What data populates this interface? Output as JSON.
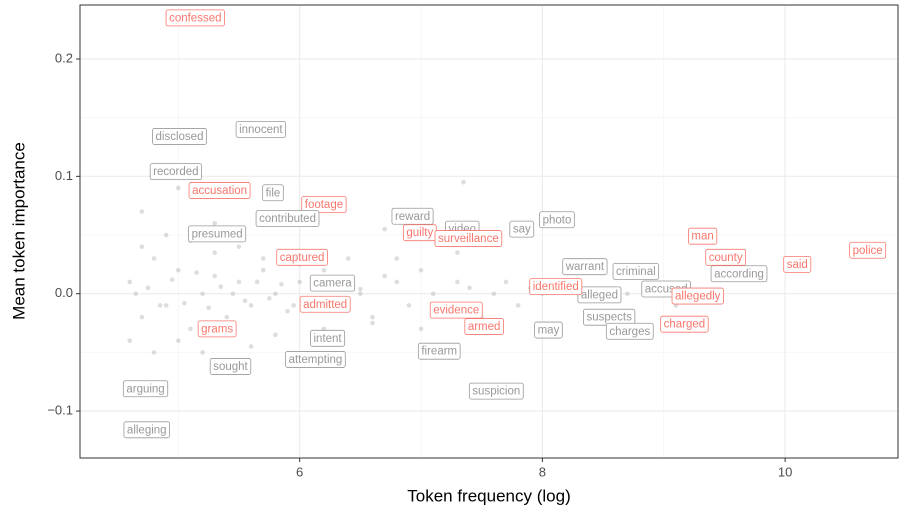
{
  "chart_data": {
    "type": "scatter",
    "x_label": "Token frequency (log)",
    "y_label": "Mean token importance",
    "xlim": [
      4.19,
      10.93
    ],
    "ylim": [
      -0.14,
      0.246
    ],
    "xticks": [
      6,
      8,
      10
    ],
    "yticks": [
      {
        "value": -0.1,
        "label": "−0.1"
      },
      {
        "value": 0,
        "label": "0.0"
      },
      0.1,
      0.2
    ],
    "x_minor": [
      5,
      7,
      9
    ],
    "y_minor": [
      -0.05,
      0.05,
      0.15
    ],
    "grid": true,
    "point_color": "#b3b3b3",
    "points": {
      "x": [
        4.6,
        4.7,
        4.8,
        4.9,
        5.0,
        5.1,
        5.2,
        5.3,
        5.4,
        5.5,
        5.6,
        5.7,
        5.8,
        5.9,
        6.0,
        6.1,
        6.2,
        6.3,
        6.4,
        6.5,
        6.6,
        6.7,
        6.8,
        6.9,
        7.0,
        7.1,
        7.2,
        7.3,
        7.4,
        7.5,
        7.6,
        7.7,
        7.8,
        7.9,
        8.0,
        4.6,
        4.7,
        4.8,
        4.9,
        5.0,
        5.1,
        5.2,
        5.3,
        5.4,
        5.5,
        5.6,
        5.7,
        5.8,
        5.9,
        6.0,
        6.2,
        6.4,
        6.6,
        6.8,
        7.0,
        7.3,
        7.6,
        4.65,
        4.75,
        4.85,
        4.95,
        5.05,
        5.15,
        5.25,
        5.35,
        5.45,
        5.55,
        5.65,
        5.75,
        5.85,
        5.95,
        6.1,
        6.3,
        6.5,
        4.8,
        4.7,
        5.0,
        5.3,
        6.7,
        7.35,
        8.3,
        8.7,
        9.1
      ],
      "y": [
        0.01,
        -0.02,
        0.03,
        -0.01,
        0.02,
        -0.03,
        0.0,
        0.015,
        -0.02,
        0.01,
        -0.01,
        0.02,
        0.0,
        -0.015,
        0.01,
        -0.005,
        0.02,
        -0.01,
        0.005,
        0.0,
        -0.02,
        0.015,
        0.01,
        -0.01,
        0.02,
        0.0,
        -0.015,
        0.01,
        0.005,
        -0.02,
        0.0,
        0.01,
        -0.01,
        0.005,
        0.0,
        -0.04,
        0.04,
        -0.05,
        0.05,
        -0.04,
        0.045,
        -0.05,
        0.035,
        -0.03,
        0.04,
        -0.045,
        0.03,
        -0.035,
        0.03,
        0.025,
        -0.03,
        0.03,
        -0.025,
        0.03,
        -0.03,
        0.035,
        -0.025,
        0.0,
        0.005,
        -0.01,
        0.012,
        -0.008,
        0.018,
        -0.012,
        0.006,
        0.0,
        -0.006,
        0.01,
        -0.004,
        0.008,
        -0.01,
        0.012,
        -0.008,
        0.004,
        0.135,
        0.07,
        0.09,
        0.06,
        0.055,
        0.095,
        0.01,
        0.0,
        -0.01
      ]
    },
    "labels": [
      {
        "text": "confessed",
        "x": 5.14,
        "y": 0.235,
        "color": "#f8766d"
      },
      {
        "text": "disclosed",
        "x": 5.01,
        "y": 0.134,
        "color": "#999999"
      },
      {
        "text": "innocent",
        "x": 5.68,
        "y": 0.14,
        "color": "#999999"
      },
      {
        "text": "recorded",
        "x": 4.98,
        "y": 0.104,
        "color": "#999999"
      },
      {
        "text": "accusation",
        "x": 5.34,
        "y": 0.088,
        "color": "#f8766d"
      },
      {
        "text": "file",
        "x": 5.78,
        "y": 0.086,
        "color": "#999999"
      },
      {
        "text": "footage",
        "x": 6.2,
        "y": 0.076,
        "color": "#f8766d"
      },
      {
        "text": "contributed",
        "x": 5.9,
        "y": 0.064,
        "color": "#999999"
      },
      {
        "text": "presumed",
        "x": 5.32,
        "y": 0.051,
        "color": "#999999"
      },
      {
        "text": "reward",
        "x": 6.93,
        "y": 0.066,
        "color": "#999999"
      },
      {
        "text": "guilty",
        "x": 6.99,
        "y": 0.052,
        "color": "#f8766d"
      },
      {
        "text": "video",
        "x": 7.34,
        "y": 0.055,
        "color": "#999999"
      },
      {
        "text": "surveillance",
        "x": 7.39,
        "y": 0.047,
        "color": "#f8766d"
      },
      {
        "text": "say",
        "x": 7.83,
        "y": 0.055,
        "color": "#999999"
      },
      {
        "text": "photo",
        "x": 8.12,
        "y": 0.063,
        "color": "#999999"
      },
      {
        "text": "captured",
        "x": 6.02,
        "y": 0.031,
        "color": "#f8766d"
      },
      {
        "text": "camera",
        "x": 6.27,
        "y": 0.009,
        "color": "#999999"
      },
      {
        "text": "admitted",
        "x": 6.21,
        "y": -0.009,
        "color": "#f8766d"
      },
      {
        "text": "grams",
        "x": 5.32,
        "y": -0.03,
        "color": "#f8766d"
      },
      {
        "text": "intent",
        "x": 6.23,
        "y": -0.038,
        "color": "#999999"
      },
      {
        "text": "attempting",
        "x": 6.13,
        "y": -0.056,
        "color": "#999999"
      },
      {
        "text": "sought",
        "x": 5.43,
        "y": -0.062,
        "color": "#999999"
      },
      {
        "text": "arguing",
        "x": 4.73,
        "y": -0.081,
        "color": "#999999"
      },
      {
        "text": "alleging",
        "x": 4.74,
        "y": -0.116,
        "color": "#999999"
      },
      {
        "text": "evidence",
        "x": 7.29,
        "y": -0.014,
        "color": "#f8766d"
      },
      {
        "text": "armed",
        "x": 7.52,
        "y": -0.028,
        "color": "#f8766d"
      },
      {
        "text": "firearm",
        "x": 7.15,
        "y": -0.049,
        "color": "#999999"
      },
      {
        "text": "suspicion",
        "x": 7.62,
        "y": -0.083,
        "color": "#999999"
      },
      {
        "text": "may",
        "x": 8.05,
        "y": -0.031,
        "color": "#999999"
      },
      {
        "text": "warrant",
        "x": 8.35,
        "y": 0.023,
        "color": "#999999"
      },
      {
        "text": "criminal",
        "x": 8.77,
        "y": 0.019,
        "color": "#999999"
      },
      {
        "text": "alleged",
        "x": 8.47,
        "y": -0.001,
        "color": "#999999"
      },
      {
        "text": "accused",
        "x": 9.02,
        "y": 0.004,
        "color": "#999999"
      },
      {
        "text": "identified",
        "x": 8.11,
        "y": 0.006,
        "color": "#f8766d"
      },
      {
        "text": "according",
        "x": 9.62,
        "y": 0.017,
        "color": "#999999"
      },
      {
        "text": "allegedly",
        "x": 9.28,
        "y": -0.002,
        "color": "#f8766d"
      },
      {
        "text": "suspects",
        "x": 8.55,
        "y": -0.02,
        "color": "#999999"
      },
      {
        "text": "charges",
        "x": 8.72,
        "y": -0.032,
        "color": "#999999"
      },
      {
        "text": "charged",
        "x": 9.17,
        "y": -0.026,
        "color": "#f8766d"
      },
      {
        "text": "man",
        "x": 9.32,
        "y": 0.049,
        "color": "#f8766d"
      },
      {
        "text": "county",
        "x": 9.51,
        "y": 0.031,
        "color": "#f8766d"
      },
      {
        "text": "said",
        "x": 10.1,
        "y": 0.025,
        "color": "#f8766d"
      },
      {
        "text": "police",
        "x": 10.68,
        "y": 0.037,
        "color": "#f8766d"
      }
    ]
  }
}
